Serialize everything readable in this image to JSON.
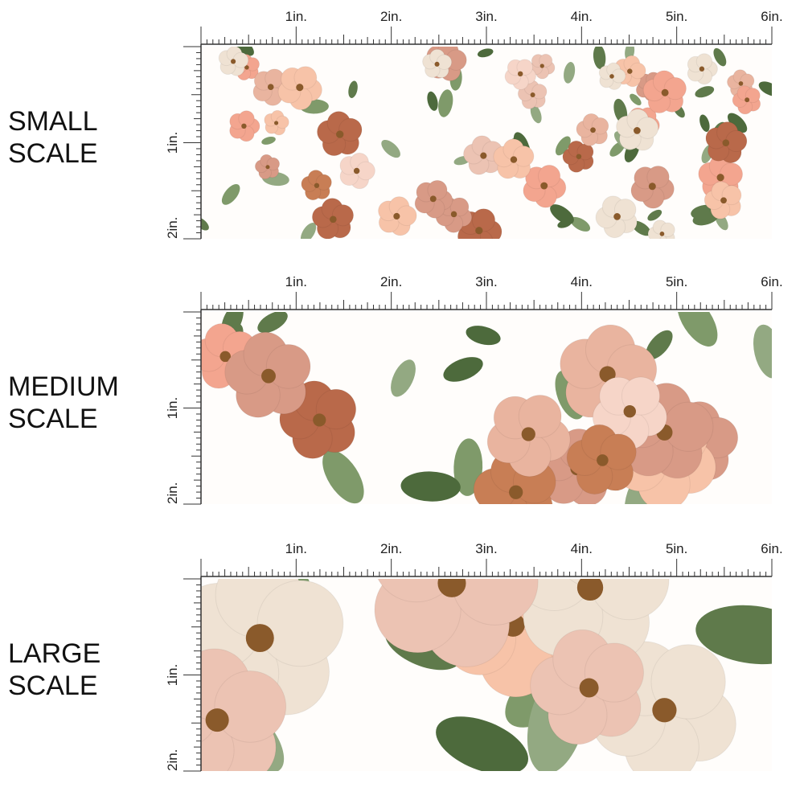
{
  "panels": [
    {
      "label_lines": [
        "SMALL",
        "SCALE"
      ],
      "ruler_x": [
        "1in.",
        "2in.",
        "3in.",
        "4in.",
        "5in.",
        "6in."
      ],
      "ruler_y": [
        "1in.",
        "2in."
      ]
    },
    {
      "label_lines": [
        "MEDIUM",
        "SCALE"
      ],
      "ruler_x": [
        "1in.",
        "2in.",
        "3in.",
        "4in.",
        "5in.",
        "6in."
      ],
      "ruler_y": [
        "1in.",
        "2in."
      ]
    },
    {
      "label_lines": [
        "LARGE",
        "SCALE"
      ],
      "ruler_x": [
        "1in.",
        "2in.",
        "3in.",
        "4in.",
        "5in.",
        "6in."
      ],
      "ruler_y": [
        "1in.",
        "2in."
      ]
    }
  ]
}
